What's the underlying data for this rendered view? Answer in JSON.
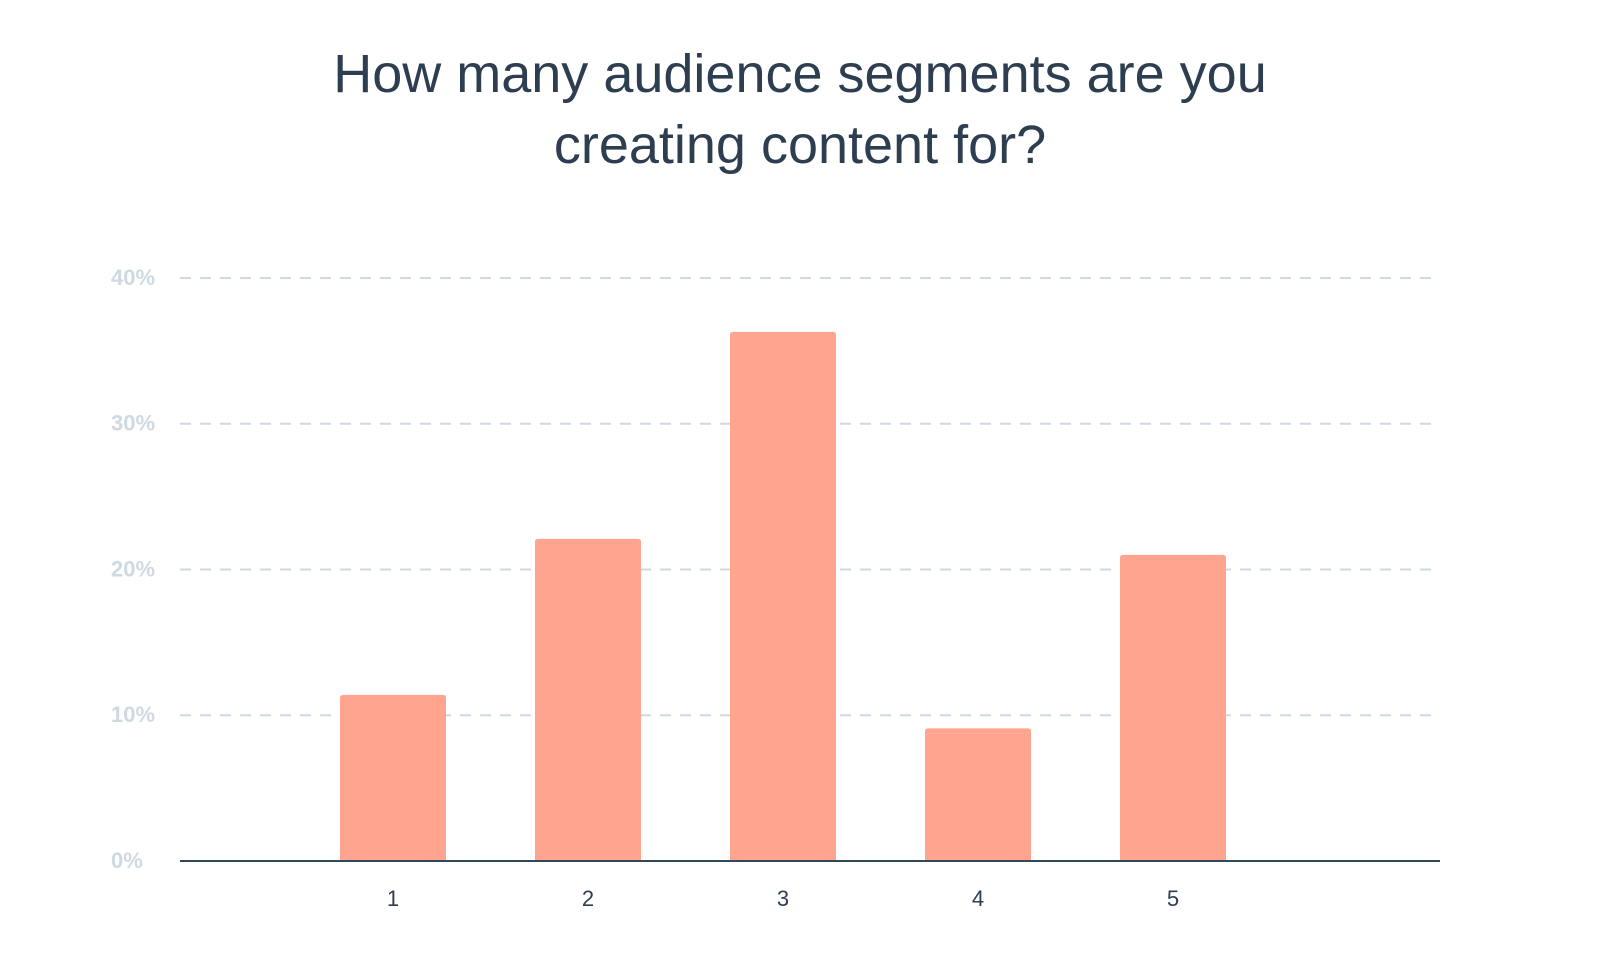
{
  "chart_data": {
    "type": "bar",
    "title_lines": [
      "How many audience segments are you",
      "creating content for?"
    ],
    "categories": [
      "1",
      "2",
      "3",
      "4",
      "5"
    ],
    "values": [
      11.4,
      22.1,
      36.3,
      9.1,
      21.0
    ],
    "ylim": [
      0,
      40
    ],
    "y_ticks": [
      0,
      10,
      20,
      30,
      40
    ],
    "y_tick_labels": [
      "0%",
      "10%",
      "20%",
      "30%",
      "40%"
    ],
    "grid": true,
    "legend": "none",
    "colors": {
      "bar": "#ffa48e",
      "title": "#2d3e50",
      "gridline": "#cfd9e2",
      "axis": "#33475b",
      "y_tick_label": "#cfd9e2",
      "x_tick_label": "#2d3e50"
    }
  }
}
